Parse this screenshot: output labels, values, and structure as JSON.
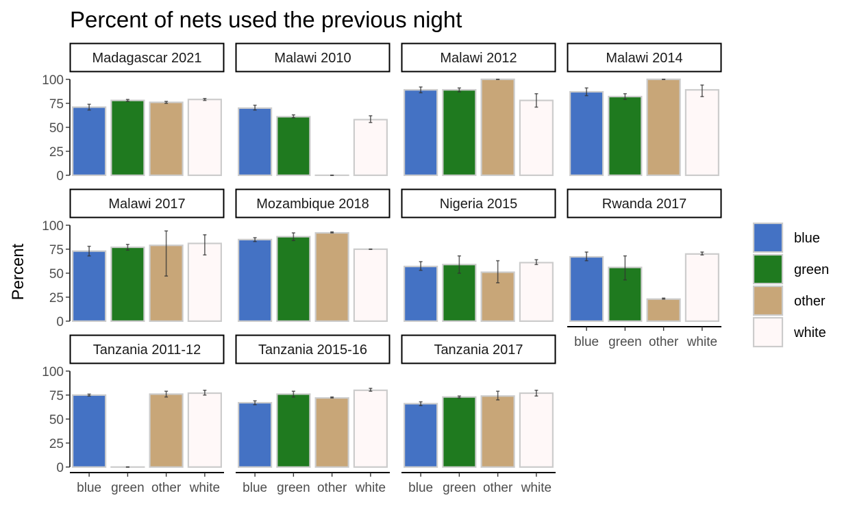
{
  "chart_data": {
    "type": "bar",
    "title": "Percent of nets used the previous night",
    "ylabel": "Percent",
    "xlabel": "",
    "ylim": [
      0,
      100
    ],
    "yticks": [
      0,
      25,
      50,
      75,
      100
    ],
    "categories": [
      "blue",
      "green",
      "other",
      "white"
    ],
    "colors": {
      "blue": "#4472C4",
      "green": "#1F7A1F",
      "other": "#C8A678",
      "white": "#FFF8F8"
    },
    "legend": {
      "position": "right",
      "entries": [
        "blue",
        "green",
        "other",
        "white"
      ]
    },
    "grid": false,
    "error_bars": true,
    "panels": [
      {
        "label": "Madagascar 2021",
        "values": [
          71,
          78,
          76,
          79
        ],
        "lower": [
          68,
          77,
          75,
          78
        ],
        "upper": [
          74,
          79,
          77,
          80
        ]
      },
      {
        "label": "Malawi 2010",
        "values": [
          70,
          61,
          0,
          58
        ],
        "lower": [
          68,
          60,
          0,
          55
        ],
        "upper": [
          73,
          63,
          0,
          62
        ]
      },
      {
        "label": "Malawi 2012",
        "values": [
          89,
          89,
          100,
          78
        ],
        "lower": [
          86,
          87,
          100,
          71
        ],
        "upper": [
          92,
          91,
          100,
          85
        ]
      },
      {
        "label": "Malawi 2014",
        "values": [
          87,
          82,
          100,
          89
        ],
        "lower": [
          83,
          79,
          100,
          82
        ],
        "upper": [
          91,
          85,
          100,
          94
        ]
      },
      {
        "label": "Malawi 2017",
        "values": [
          73,
          77,
          79,
          81
        ],
        "lower": [
          68,
          74,
          47,
          69
        ],
        "upper": [
          78,
          80,
          94,
          90
        ]
      },
      {
        "label": "Mozambique 2018",
        "values": [
          85,
          88,
          92,
          75
        ],
        "lower": [
          83,
          84,
          92,
          75
        ],
        "upper": [
          87,
          92,
          93,
          75
        ]
      },
      {
        "label": "Nigeria 2015",
        "values": [
          57,
          59,
          51,
          61
        ],
        "lower": [
          53,
          50,
          40,
          59
        ],
        "upper": [
          62,
          68,
          63,
          64
        ]
      },
      {
        "label": "Rwanda 2017",
        "values": [
          67,
          56,
          23,
          70
        ],
        "lower": [
          63,
          43,
          23,
          69
        ],
        "upper": [
          72,
          68,
          24,
          72
        ]
      },
      {
        "label": "Tanzania 2011-12",
        "values": [
          75,
          0,
          76,
          77
        ],
        "lower": [
          74,
          0,
          73,
          75
        ],
        "upper": [
          76,
          0,
          79,
          80
        ]
      },
      {
        "label": "Tanzania 2015-16",
        "values": [
          67,
          76,
          72,
          80
        ],
        "lower": [
          65,
          73,
          72,
          79
        ],
        "upper": [
          69,
          79,
          73,
          82
        ]
      },
      {
        "label": "Tanzania 2017",
        "values": [
          66,
          73,
          74,
          77
        ],
        "lower": [
          64,
          72,
          70,
          74
        ],
        "upper": [
          68,
          74,
          79,
          80
        ]
      }
    ]
  }
}
